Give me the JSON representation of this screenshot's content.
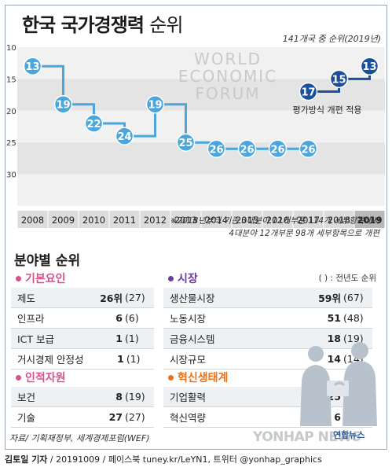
{
  "header": {
    "title_bold": "한국 국가경쟁력",
    "title_light": "순위",
    "note": "141개국 중 순위(2019년)"
  },
  "colors": {
    "line_old": "#4aa6dc",
    "line_new": "#1b4f9a",
    "band_light": "#f1f1f1",
    "band_mid": "#e4e4e4",
    "axis_bar": "#dcdcdc",
    "axis_bar_highlight": "#b9b9b9",
    "pink": "#d9508f",
    "purple": "#6a3d9a",
    "orange": "#e8731a"
  },
  "chart_data": {
    "type": "line",
    "title": "한국 국가경쟁력 순위",
    "subtitle": "141개국 중 순위(2019년)",
    "x_label": "",
    "y_label": "",
    "y_axis": {
      "ticks": [
        10,
        15,
        20,
        25,
        30
      ],
      "range": [
        10,
        35
      ],
      "reversed": true
    },
    "categories": [
      "2008",
      "2009",
      "2010",
      "2011",
      "2012",
      "2013",
      "2014",
      "2015",
      "2016",
      "2017",
      "2018",
      "2019"
    ],
    "series": [
      {
        "name": "",
        "style": "step",
        "x": [
          "2008",
          "2009",
          "2010",
          "2011",
          "2012",
          "2013",
          "2014",
          "2015",
          "2016",
          "2017"
        ],
        "values": [
          13,
          19,
          22,
          24,
          19,
          25,
          26,
          26,
          26,
          26
        ]
      },
      {
        "name": "",
        "style": "step",
        "x": [
          "2017",
          "2018",
          "2019"
        ],
        "values": [
          17,
          15,
          13
        ]
      }
    ],
    "annotations": [
      {
        "text": "WORLD",
        "type": "watermark"
      },
      {
        "text": "ECONOMIC",
        "type": "watermark"
      },
      {
        "text": "FORUM",
        "type": "watermark"
      },
      {
        "text": "평가방식 개편 적용",
        "near": "2017"
      }
    ],
    "highlight_category": "2019"
  },
  "footnotes": [
    "※2018년부터 기존 3대분야 12개부문 114개 세부항목에서",
    "4대분야 12개부문 98개 세부항목으로 개편"
  ],
  "sections": {
    "title": "분야별 순위",
    "legend": "( ) : 전년도 순위",
    "groups": [
      {
        "name": "기본요인",
        "color": "pink",
        "items": [
          {
            "label": "제도",
            "rank": "26위",
            "prev": "(27)"
          },
          {
            "label": "인프라",
            "rank": "6",
            "prev": "(6)"
          },
          {
            "label": "ICT 보급",
            "rank": "1",
            "prev": "(1)"
          },
          {
            "label": "거시경제 안정성",
            "rank": "1",
            "prev": "(1)"
          }
        ]
      },
      {
        "name": "시장",
        "color": "purple",
        "items": [
          {
            "label": "생산물시장",
            "rank": "59위",
            "prev": "(67)"
          },
          {
            "label": "노동시장",
            "rank": "51",
            "prev": "(48)"
          },
          {
            "label": "금융시스템",
            "rank": "18",
            "prev": "(19)"
          },
          {
            "label": "시장규모",
            "rank": "14",
            "prev": "(14)"
          }
        ]
      },
      {
        "name": "인적자원",
        "color": "pink",
        "items": [
          {
            "label": "보건",
            "rank": "8",
            "prev": "(19)"
          },
          {
            "label": "기술",
            "rank": "27",
            "prev": "(27)"
          }
        ]
      },
      {
        "name": "혁신생태계",
        "color": "orange",
        "items": [
          {
            "label": "기업활력",
            "rank": "25",
            "prev": "(22)"
          },
          {
            "label": "혁신역량",
            "rank": "6",
            "prev": "(8)"
          }
        ]
      }
    ]
  },
  "source": "자료/ 기획재정부, 세계경제포럼(WEF)",
  "credit": {
    "author": "김토일 기자",
    "rest": " / 20191009 / 페이스북 tuney.kr/LeYN1, 트위터 @yonhap_graphics"
  },
  "watermark": {
    "text": "YONHAP NEWS",
    "logo": "연합뉴스"
  }
}
